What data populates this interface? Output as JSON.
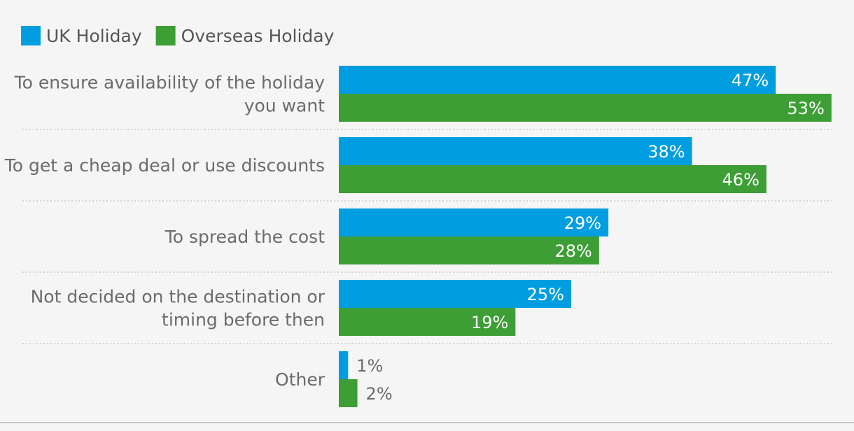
{
  "colors": {
    "uk": "#009ee0",
    "overseas": "#3d9e35"
  },
  "chart_data": {
    "type": "bar",
    "orientation": "horizontal",
    "categories": [
      [
        "To ensure availability of the holiday",
        "you want"
      ],
      [
        "To get a cheap deal or use discounts"
      ],
      [
        "To spread the cost"
      ],
      [
        "Not decided on the destination or",
        "timing before then"
      ],
      [
        "Other"
      ]
    ],
    "series": [
      {
        "name": "UK Holiday",
        "values": [
          47,
          38,
          29,
          25,
          1
        ],
        "labels": [
          "47%",
          "38%",
          "29%",
          "25%",
          "1%"
        ]
      },
      {
        "name": "Overseas Holiday",
        "values": [
          53,
          46,
          28,
          19,
          2
        ],
        "labels": [
          "53%",
          "46%",
          "28%",
          "19%",
          "2%"
        ]
      }
    ],
    "legend_position": "top-left",
    "grid": false
  }
}
